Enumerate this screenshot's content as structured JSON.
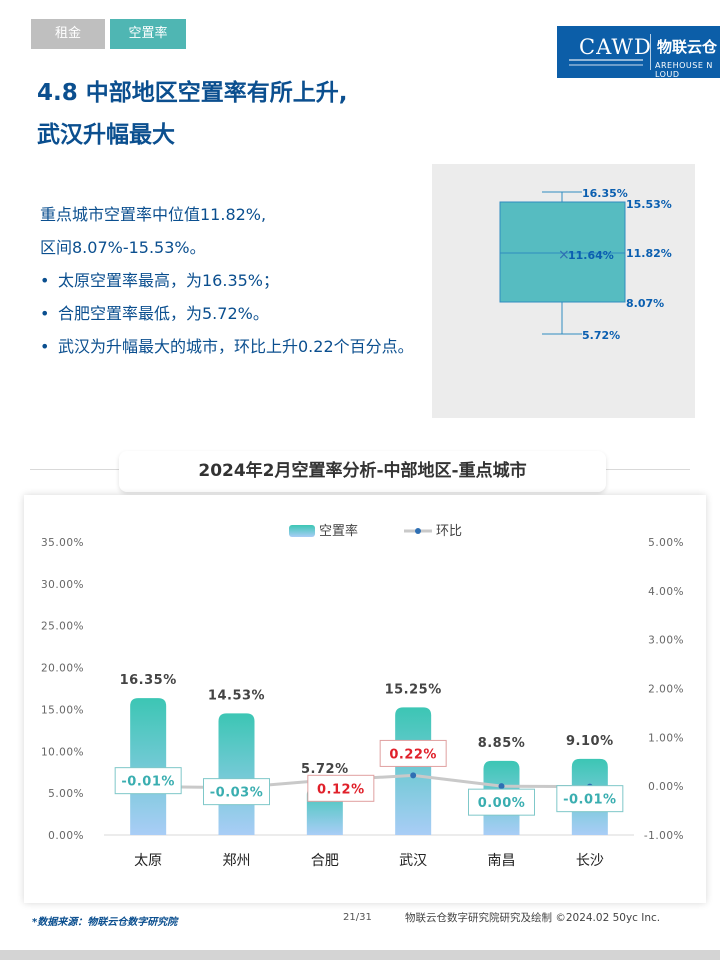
{
  "tabs": [
    {
      "label": "租金",
      "active": false
    },
    {
      "label": "空置率",
      "active": true
    }
  ],
  "logo": {
    "brand": "CAWD",
    "cn": "物联云仓",
    "en": "AREHOUSE N LOUD"
  },
  "title": {
    "line1": "4.8 中部地区空置率有所上升,",
    "line2": "武汉升幅最大"
  },
  "summary": {
    "line1": "重点城市空置率中位值11.82%,",
    "line2": "区间8.07%-15.53%。",
    "bullets": [
      "太原空置率最高，为16.35%；",
      "合肥空置率最低，为5.72%。",
      "武汉为升幅最大的城市，环比上升0.22个百分点。"
    ]
  },
  "boxplot": {
    "max": "16.35%",
    "q3": "15.53%",
    "mean": "11.64%",
    "median": "11.82%",
    "q1": "8.07%",
    "min": "5.72%",
    "mean_marker": "×"
  },
  "chart_title": "2024年2月空置率分析-中部地区-重点城市",
  "chart_data": {
    "type": "bar",
    "categories": [
      "太原",
      "郑州",
      "合肥",
      "武汉",
      "南昌",
      "长沙"
    ],
    "series": [
      {
        "name": "空置率",
        "type": "bar",
        "axis": "left",
        "values": [
          16.35,
          14.53,
          5.72,
          15.25,
          8.85,
          9.1
        ],
        "labels": [
          "16.35%",
          "14.53%",
          "5.72%",
          "15.25%",
          "8.85%",
          "9.10%"
        ]
      },
      {
        "name": "环比",
        "type": "line",
        "axis": "right",
        "values": [
          -0.01,
          -0.03,
          0.12,
          0.22,
          0.0,
          -0.01
        ],
        "labels": [
          "-0.01%",
          "-0.03%",
          "0.12%",
          "0.22%",
          "0.00%",
          "-0.01%"
        ]
      }
    ],
    "left_axis": {
      "ticks": [
        "35.00%",
        "30.00%",
        "25.00%",
        "20.00%",
        "15.00%",
        "10.00%",
        "5.00%",
        "0.00%"
      ],
      "range": [
        0,
        35
      ]
    },
    "right_axis": {
      "ticks": [
        "5.00%",
        "4.00%",
        "3.00%",
        "2.00%",
        "1.00%",
        "0.00%",
        "-1.00%"
      ],
      "range": [
        -1,
        5
      ]
    },
    "legend_position": "top-center",
    "grid": false
  },
  "colors": {
    "bar_top": "#3cc6b4",
    "bar_bottom": "#a9cdf6",
    "line": "#c9c9c9",
    "line_marker": "#2f6fb3",
    "positive_label": "#e0202a",
    "negative_label": "#3aaeb0",
    "title": "#0b4f8f"
  },
  "footer": {
    "source": "*数据来源：物联云仓数字研究院",
    "page": "21/31",
    "credit": "物联云仓数字研究院研究及绘制   ©2024.02 50yc Inc."
  }
}
